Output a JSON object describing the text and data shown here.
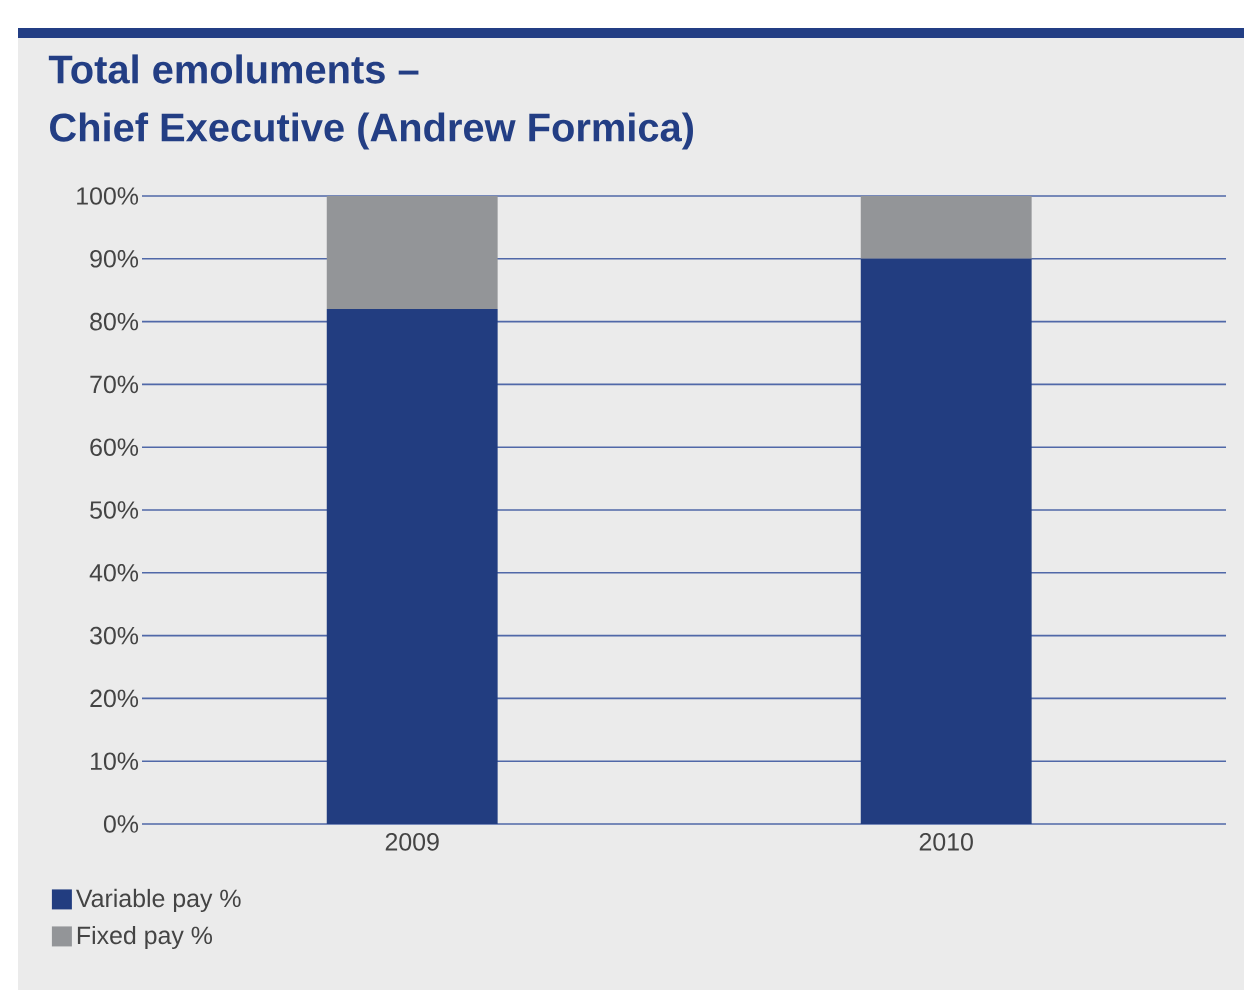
{
  "chart_data": {
    "type": "bar",
    "stacked": true,
    "title": "Total emoluments –",
    "subtitle": "Chief Executive (Andrew Formica)",
    "categories": [
      "2009",
      "2010"
    ],
    "series": [
      {
        "name": "Variable pay %",
        "color": "#223d80",
        "values": [
          82,
          90
        ]
      },
      {
        "name": "Fixed pay %",
        "color": "#939598",
        "values": [
          18,
          10
        ]
      }
    ],
    "ylim": [
      0,
      100
    ],
    "yticks": [
      {
        "value": 0,
        "label": "0%"
      },
      {
        "value": 10,
        "label": "10%"
      },
      {
        "value": 20,
        "label": "20%"
      },
      {
        "value": 30,
        "label": "30%"
      },
      {
        "value": 40,
        "label": "40%"
      },
      {
        "value": 50,
        "label": "50%"
      },
      {
        "value": 60,
        "label": "60%"
      },
      {
        "value": 70,
        "label": "70%"
      },
      {
        "value": 80,
        "label": "80%"
      },
      {
        "value": 90,
        "label": "90%"
      },
      {
        "value": 100,
        "label": "100%"
      }
    ],
    "grid": "y",
    "legend": "bottom"
  }
}
